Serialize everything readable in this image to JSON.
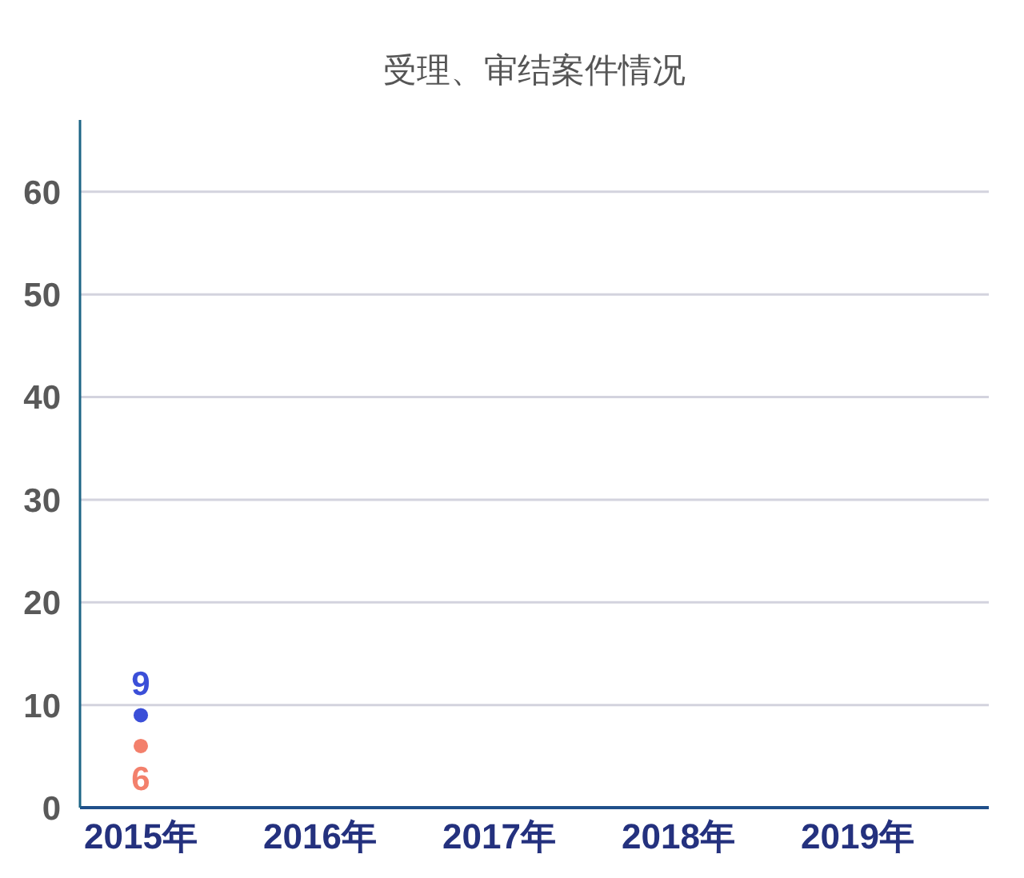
{
  "chart_data": {
    "type": "scatter",
    "title": "受理、审结案件情况",
    "categories": [
      "2015年",
      "2016年",
      "2017年",
      "2018年",
      "2019年"
    ],
    "series": [
      {
        "color": "#3b4fd8",
        "values": [
          9,
          null,
          null,
          null,
          null
        ]
      },
      {
        "color": "#f3806c",
        "values": [
          6,
          null,
          null,
          null,
          null
        ]
      }
    ],
    "ylim": [
      0,
      67
    ],
    "yticks": [
      0,
      10,
      20,
      30,
      40,
      50,
      60
    ],
    "grid": "y",
    "data_labels": true,
    "marker": "circle"
  }
}
